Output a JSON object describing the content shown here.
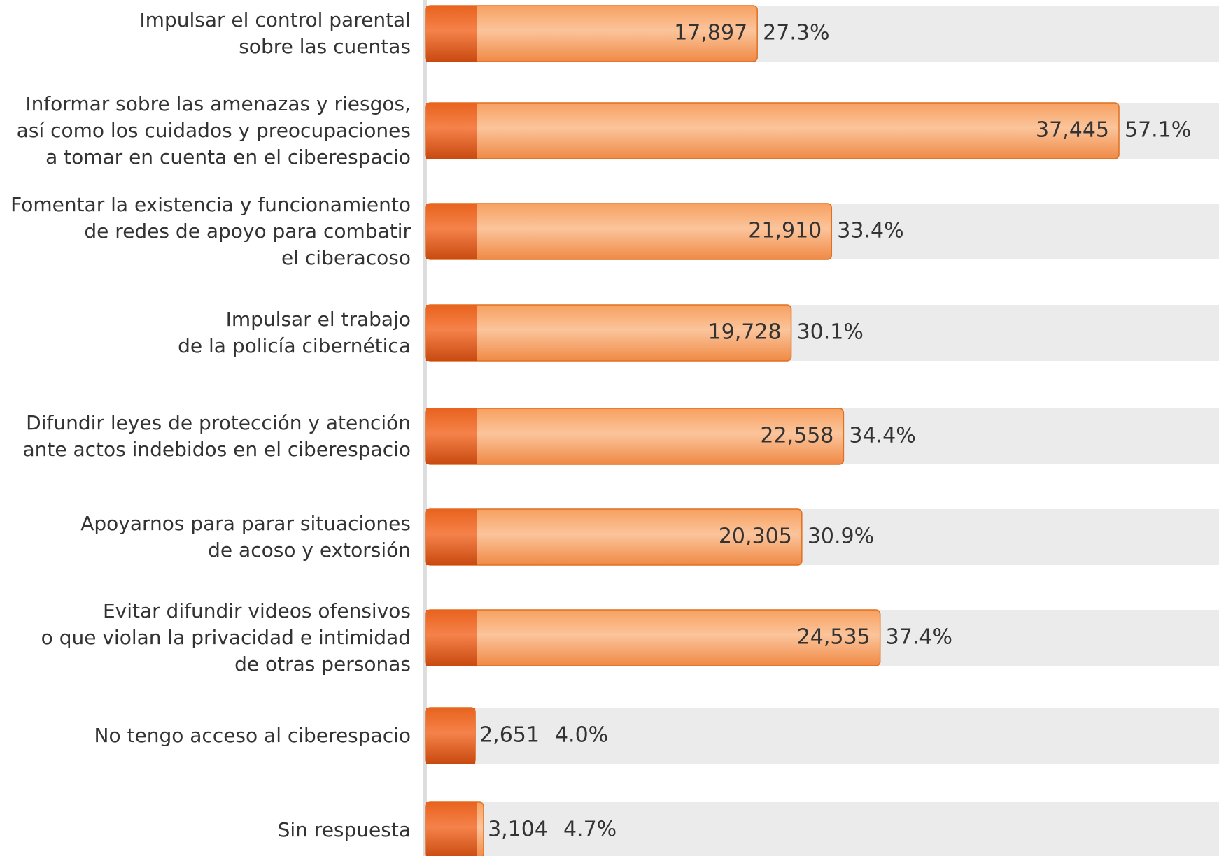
{
  "chart_data": {
    "type": "bar",
    "orientation": "horizontal",
    "categories": [
      "Impulsar el control parental\nsobre las cuentas",
      "Informar sobre las amenazas y riesgos,\nasí como los cuidados y preocupaciones\na tomar en cuenta en el ciberespacio",
      "Fomentar la existencia y funcionamiento\nde redes de apoyo para combatir\nel ciberacoso",
      "Impulsar el trabajo\nde la policía cibernética",
      "Difundir leyes de protección y atención\nante actos indebidos en el ciberespacio",
      "Apoyarnos para parar situaciones\nde acoso y extorsión",
      "Evitar difundir videos ofensivos\no que violan la privacidad e intimidad\nde otras personas",
      "No tengo acceso al ciberespacio",
      "Sin respuesta"
    ],
    "series": [
      {
        "color": "#f07a3a",
        "values": [
          17897,
          37445,
          21910,
          19728,
          22558,
          20305,
          24535,
          2651,
          3104
        ],
        "value_labels": [
          "17,897",
          "37,445",
          "21,910",
          "19,728",
          "22,558",
          "20,305",
          "24,535",
          "2,651",
          "3,104"
        ]
      },
      {
        "values": [
          27.3,
          57.1,
          33.4,
          30.1,
          34.4,
          30.9,
          37.4,
          4.0,
          4.7
        ],
        "value_labels": [
          "27.3%",
          "57.1%",
          "33.4%",
          "30.1%",
          "34.4%",
          "30.9%",
          "37.4%",
          "4.0%",
          "4.7%"
        ]
      }
    ]
  }
}
